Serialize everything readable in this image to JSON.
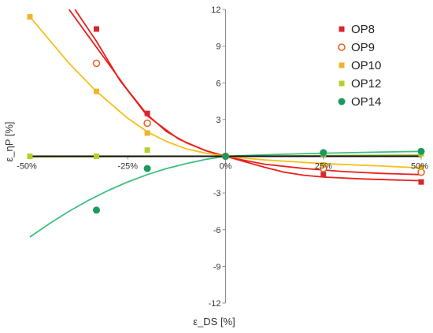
{
  "chart_data": {
    "type": "scatter",
    "title": "",
    "xlabel": "ε_DS [%]",
    "ylabel": "ε_ηP [%]",
    "xlim": [
      -50,
      50
    ],
    "ylim": [
      -12,
      12
    ],
    "x_ticks": [
      -50,
      -25,
      0,
      25,
      50
    ],
    "x_tick_labels": [
      "-50%",
      "-25%",
      "0%",
      "25%",
      "50%"
    ],
    "y_ticks": [
      -12,
      -9,
      -6,
      -3,
      0,
      3,
      6,
      9,
      12
    ],
    "y_tick_labels": [
      "-12",
      "-9",
      "-6",
      "-3",
      "0",
      "3",
      "6",
      "9",
      "12"
    ],
    "grid": false,
    "legend_position": "top-right",
    "series": [
      {
        "name": "OP8",
        "marker": "square",
        "color": "#d9262e",
        "points": [
          [
            -33,
            10.4
          ],
          [
            -20,
            3.5
          ],
          [
            0,
            0
          ],
          [
            25,
            -1.5
          ],
          [
            50,
            -2.1
          ]
        ],
        "trend_points": [
          [
            -38.5,
            12
          ],
          [
            -33,
            9.4
          ],
          [
            -27,
            6.2
          ],
          [
            -20,
            3.3
          ],
          [
            -12,
            1.4
          ],
          [
            -5,
            0.45
          ],
          [
            0,
            0
          ],
          [
            5,
            -0.45
          ],
          [
            10,
            -0.9
          ],
          [
            15,
            -1.3
          ],
          [
            20,
            -1.55
          ],
          [
            25,
            -1.7
          ],
          [
            35,
            -1.85
          ],
          [
            50,
            -2.0
          ]
        ]
      },
      {
        "name": "OP9",
        "marker": "circle-open",
        "color": "#e8622a",
        "points": [
          [
            -33,
            7.6
          ],
          [
            -20,
            2.7
          ],
          [
            0,
            0
          ],
          [
            25,
            -1.0
          ],
          [
            50,
            -1.3
          ]
        ],
        "trend_points": [
          [
            -40,
            12
          ],
          [
            -35,
            9.8
          ],
          [
            -30,
            7.6
          ],
          [
            -25,
            5.4
          ],
          [
            -20,
            3.4
          ],
          [
            -15,
            2.0
          ],
          [
            -10,
            1.1
          ],
          [
            -5,
            0.45
          ],
          [
            0,
            0
          ],
          [
            5,
            -0.35
          ],
          [
            10,
            -0.65
          ],
          [
            20,
            -1.0
          ],
          [
            30,
            -1.25
          ],
          [
            40,
            -1.4
          ],
          [
            50,
            -1.5
          ]
        ]
      },
      {
        "name": "OP10",
        "marker": "square",
        "color": "#f0b42a",
        "points": [
          [
            -50,
            11.4
          ],
          [
            -33,
            5.3
          ],
          [
            -20,
            1.9
          ],
          [
            0,
            0
          ],
          [
            25,
            -0.7
          ],
          [
            50,
            -0.9
          ]
        ],
        "trend_points": [
          [
            -50,
            11.4
          ],
          [
            -45,
            9.5
          ],
          [
            -40,
            7.6
          ],
          [
            -33,
            5.3
          ],
          [
            -25,
            3.1
          ],
          [
            -20,
            2.0
          ],
          [
            -15,
            1.2
          ],
          [
            -10,
            0.6
          ],
          [
            -5,
            0.25
          ],
          [
            0,
            0
          ],
          [
            10,
            -0.3
          ],
          [
            25,
            -0.6
          ],
          [
            40,
            -0.8
          ],
          [
            50,
            -0.95
          ]
        ]
      },
      {
        "name": "OP12",
        "marker": "square",
        "color": "#b8cf2a",
        "points": [
          [
            -50,
            0.0
          ],
          [
            -33,
            0.0
          ],
          [
            -20,
            0.5
          ],
          [
            0,
            0
          ],
          [
            25,
            0.2
          ],
          [
            50,
            0.2
          ]
        ],
        "trend_points": [
          [
            -50,
            -0.05
          ],
          [
            -25,
            -0.03
          ],
          [
            0,
            0
          ],
          [
            25,
            0.05
          ],
          [
            50,
            0.1
          ]
        ]
      },
      {
        "name": "OP14",
        "marker": "circle",
        "color": "#1a9a5c",
        "points": [
          [
            -33,
            -4.4
          ],
          [
            -20,
            -1.0
          ],
          [
            0,
            0
          ],
          [
            25,
            0.3
          ],
          [
            50,
            0.4
          ]
        ],
        "trend_points": [
          [
            -50,
            -6.6
          ],
          [
            -45,
            -5.5
          ],
          [
            -40,
            -4.5
          ],
          [
            -35,
            -3.6
          ],
          [
            -30,
            -2.8
          ],
          [
            -25,
            -2.1
          ],
          [
            -20,
            -1.5
          ],
          [
            -15,
            -1.0
          ],
          [
            -10,
            -0.6
          ],
          [
            -5,
            -0.25
          ],
          [
            0,
            0
          ],
          [
            10,
            0.12
          ],
          [
            25,
            0.25
          ],
          [
            40,
            0.35
          ],
          [
            50,
            0.4
          ]
        ]
      }
    ]
  }
}
